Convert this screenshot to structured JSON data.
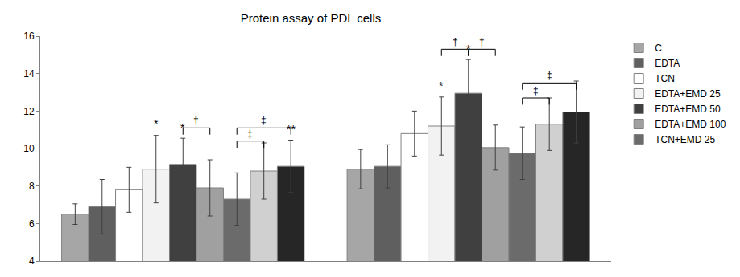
{
  "chart_data": {
    "type": "bar",
    "title": "Protein assay of PDL cells",
    "categories": [
      null,
      null
    ],
    "series": [
      {
        "name": "C",
        "color": "#a6a6a6",
        "values": [
          6.5,
          8.9
        ],
        "errors": [
          0.55,
          1.05
        ]
      },
      {
        "name": "EDTA",
        "color": "#5f5f5f",
        "values": [
          6.9,
          9.05
        ],
        "errors": [
          1.45,
          1.15
        ]
      },
      {
        "name": "TCN",
        "color": "#ffffff",
        "values": [
          7.8,
          10.8
        ],
        "errors": [
          1.2,
          1.2
        ]
      },
      {
        "name": "EDTA+EMD 25",
        "color": "#f2f2f2",
        "values": [
          8.9,
          11.2
        ],
        "errors": [
          1.8,
          1.55
        ]
      },
      {
        "name": "EDTA+EMD 50",
        "color": "#404040",
        "values": [
          9.15,
          12.95
        ],
        "errors": [
          1.4,
          1.8
        ]
      },
      {
        "name": "EDTA+EMD 100",
        "color": "#a0a0a0",
        "values": [
          7.9,
          10.05
        ],
        "errors": [
          1.5,
          1.2
        ]
      },
      {
        "name": "TCN+EMD 25",
        "color": "#6b6b6b",
        "values": [
          7.3,
          9.75
        ],
        "errors": [
          1.4,
          1.4
        ]
      },
      {
        "name": null,
        "color": "#d0d0d0",
        "values": [
          8.8,
          11.3
        ],
        "errors": [
          1.5,
          1.4
        ]
      },
      {
        "name": null,
        "color": "#262626",
        "values": [
          9.05,
          11.95
        ],
        "errors": [
          1.4,
          1.65
        ]
      }
    ],
    "ylim": [
      4,
      16
    ],
    "yticks": [
      4,
      6,
      8,
      10,
      12,
      14,
      16
    ],
    "grid": false,
    "legend": "right",
    "tick_labels": "y",
    "annotations": [
      {
        "text": "*",
        "group": 0,
        "series": 3,
        "y": 10.9
      },
      {
        "text": "*",
        "group": 0,
        "series": 4,
        "y": 10.7
      },
      {
        "text": "**",
        "group": 0,
        "series": 8,
        "y": 10.6
      },
      {
        "text": "*",
        "group": 1,
        "series": 3,
        "y": 12.9
      },
      {
        "text": "*",
        "group": 1,
        "series": 4,
        "y": 14.9
      }
    ],
    "brackets": [
      {
        "text": "†",
        "group": 0,
        "from": 4,
        "to": 5,
        "y": 11.1
      },
      {
        "text": "‡",
        "group": 0,
        "from": 6,
        "to": 7,
        "y": 10.4
      },
      {
        "text": "‡",
        "group": 0,
        "from": 6,
        "to": 8,
        "y": 11.1
      },
      {
        "text": "†",
        "group": 1,
        "from": 3,
        "to": 4,
        "y": 15.3
      },
      {
        "text": "†",
        "group": 1,
        "from": 4,
        "to": 5,
        "y": 15.3
      },
      {
        "text": "‡",
        "group": 1,
        "from": 6,
        "to": 7,
        "y": 12.7
      },
      {
        "text": "‡",
        "group": 1,
        "from": 6,
        "to": 8,
        "y": 13.5
      }
    ]
  }
}
